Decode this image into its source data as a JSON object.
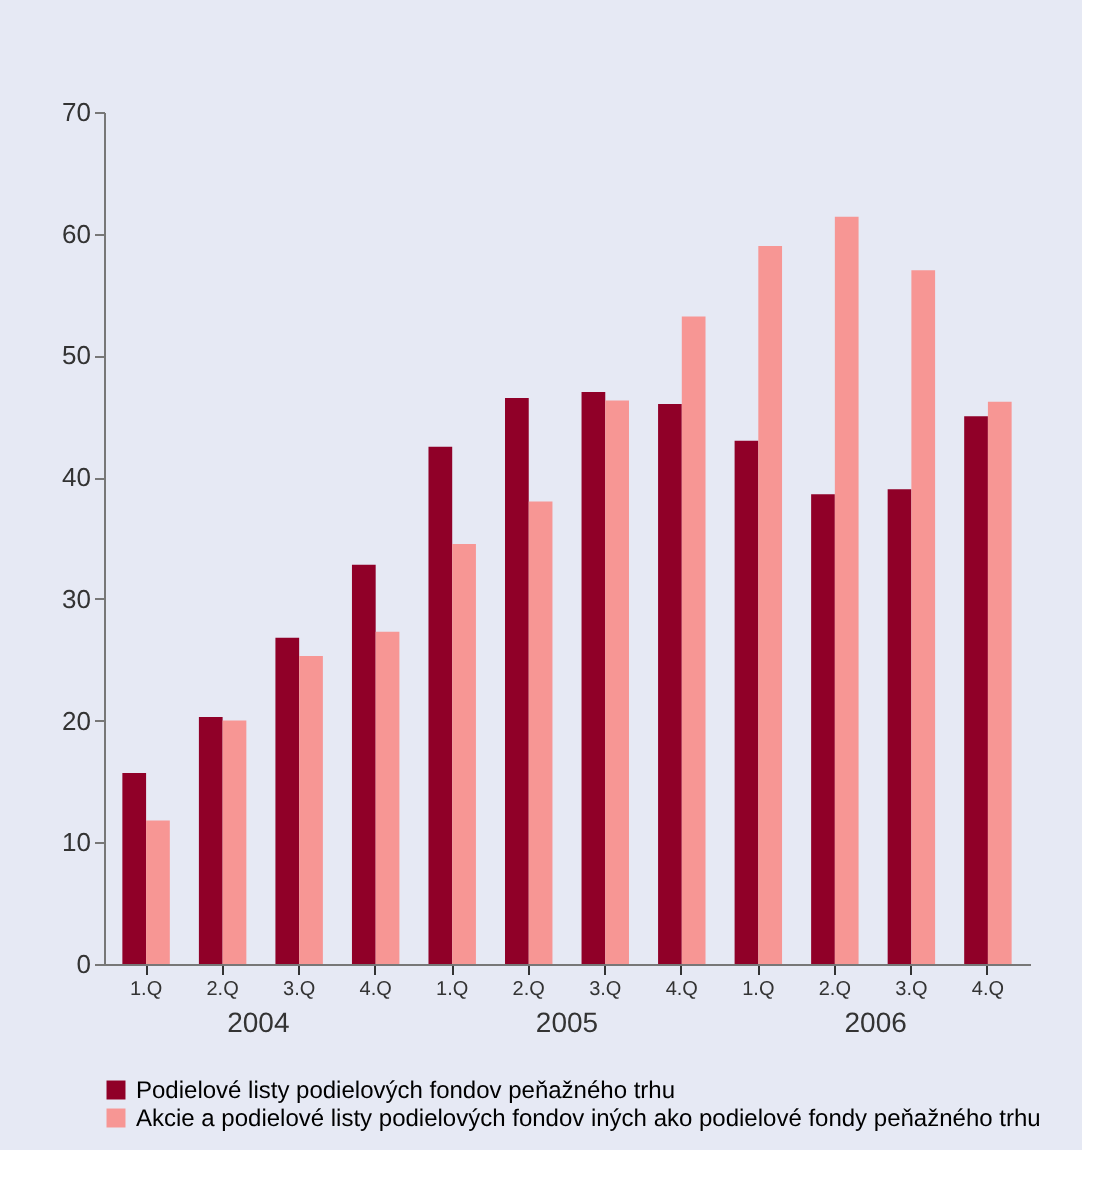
{
  "chart_data": {
    "type": "bar",
    "categories": [
      "1.Q",
      "2.Q",
      "3.Q",
      "4.Q",
      "1.Q",
      "2.Q",
      "3.Q",
      "4.Q",
      "1.Q",
      "2.Q",
      "3.Q",
      "4.Q"
    ],
    "series": [
      {
        "name": "Podielové listy podielových fondov peňažného trhu",
        "color": "#900028",
        "values": [
          15.7,
          20.3,
          26.8,
          32.8,
          42.5,
          46.5,
          47,
          46,
          43,
          38.6,
          39,
          45
        ]
      },
      {
        "name": "Akcie a podielové listy podielových fondov iných ako podielové fondy peňažného trhu",
        "color": "#f79694",
        "values": [
          11.8,
          20,
          25.3,
          27.3,
          34.5,
          38,
          46.3,
          53.2,
          59,
          61.4,
          57,
          46.2
        ]
      }
    ],
    "annotations": [
      "2004",
      "2005",
      "2006"
    ],
    "ylim": [
      0,
      70
    ],
    "yticks": [
      0,
      10,
      20,
      30,
      40,
      50,
      60,
      70
    ],
    "grid": false,
    "legend": "bottom"
  }
}
